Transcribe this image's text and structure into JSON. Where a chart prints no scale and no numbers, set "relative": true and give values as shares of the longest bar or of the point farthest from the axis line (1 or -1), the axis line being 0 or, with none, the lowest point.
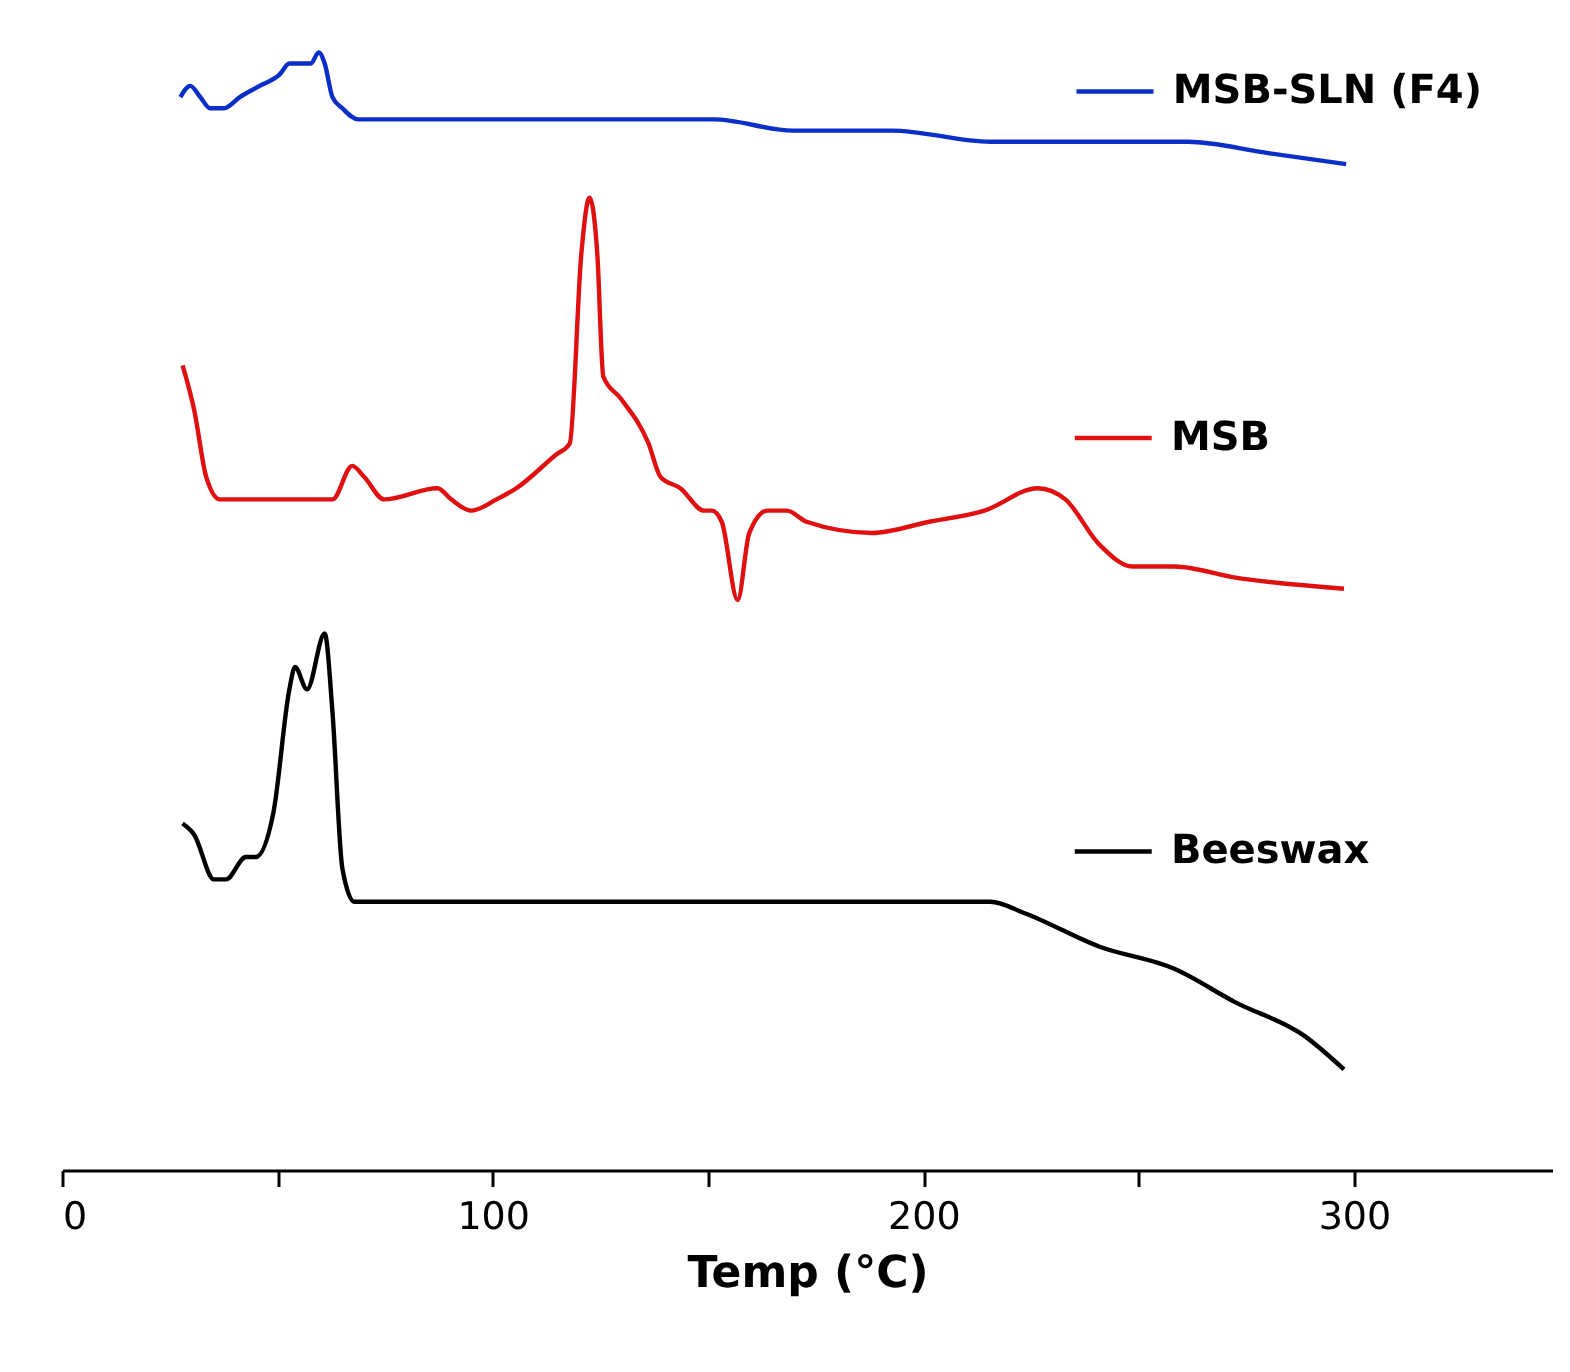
{
  "chart_data": {
    "type": "line",
    "relative": true,
    "xlabel": "Temp (°C)",
    "xlim": [
      0,
      346
    ],
    "xticks": [
      0,
      {
        "value": 50,
        "label": null
      },
      100,
      {
        "value": 150,
        "label": null
      },
      200,
      {
        "value": 250,
        "label": null
      },
      300
    ],
    "grid": false,
    "legend": "right",
    "marker": "none",
    "line_style": "solid",
    "tick_labels": "x",
    "series": [
      {
        "name": "MSB-SLN (F4)",
        "color": "#0a2fc8",
        "x": [
          27.5,
          29.8,
          32.1,
          34.4,
          37.6,
          41.3,
          45.9,
          50.5,
          52.8,
          55.0,
          57.8,
          59.6,
          61.0,
          62.8,
          65.1,
          68.8,
          87.2,
          105.5,
          123.9,
          133.0,
          151.4,
          169.7,
          192.7,
          215.6,
          238.5,
          261.5,
          279.8,
          298.2
        ],
        "values": [
          0.96,
          0.97,
          0.96,
          0.95,
          0.95,
          0.96,
          0.97,
          0.98,
          0.99,
          0.99,
          0.99,
          1.0,
          0.99,
          0.96,
          0.95,
          0.94,
          0.94,
          0.94,
          0.94,
          0.94,
          0.94,
          0.93,
          0.93,
          0.92,
          0.92,
          0.92,
          0.91,
          0.9
        ]
      },
      {
        "name": "MSB",
        "color": "#e01010",
        "x": [
          28.0,
          30.7,
          33.5,
          36.7,
          41.3,
          53.7,
          62.8,
          67.4,
          70.2,
          74.8,
          87.2,
          90.4,
          95.0,
          100.9,
          105.5,
          114.7,
          117.9,
          120.6,
          122.5,
          124.3,
          125.7,
          129.8,
          136.2,
          139.0,
          143.6,
          149.1,
          150.9,
          153.2,
          156.9,
          159.6,
          163.8,
          168.3,
          172.9,
          188.1,
          201.4,
          214.2,
          226.6,
          233.0,
          240.8,
          248.6,
          258.3,
          272.5,
          297.7
        ],
        "values": [
          0.72,
          0.68,
          0.62,
          0.6,
          0.6,
          0.6,
          0.6,
          0.63,
          0.62,
          0.6,
          0.61,
          0.6,
          0.59,
          0.6,
          0.61,
          0.64,
          0.65,
          0.82,
          0.87,
          0.82,
          0.71,
          0.69,
          0.65,
          0.62,
          0.61,
          0.59,
          0.59,
          0.58,
          0.51,
          0.57,
          0.59,
          0.59,
          0.58,
          0.57,
          0.58,
          0.59,
          0.61,
          0.6,
          0.56,
          0.54,
          0.54,
          0.53,
          0.52
        ]
      },
      {
        "name": "Beeswax",
        "color": "#000000",
        "x": [
          28.0,
          30.7,
          35.3,
          38.1,
          42.7,
          45.0,
          49.1,
          52.8,
          54.1,
          56.9,
          61.0,
          62.8,
          65.1,
          67.9,
          105.5,
          136.2,
          197.2,
          215.6,
          223.4,
          240.8,
          258.3,
          272.5,
          288.5,
          297.7
        ],
        "values": [
          0.31,
          0.3,
          0.26,
          0.26,
          0.28,
          0.28,
          0.32,
          0.43,
          0.45,
          0.43,
          0.48,
          0.41,
          0.27,
          0.24,
          0.24,
          0.24,
          0.24,
          0.24,
          0.23,
          0.2,
          0.18,
          0.15,
          0.12,
          0.09
        ]
      }
    ]
  }
}
